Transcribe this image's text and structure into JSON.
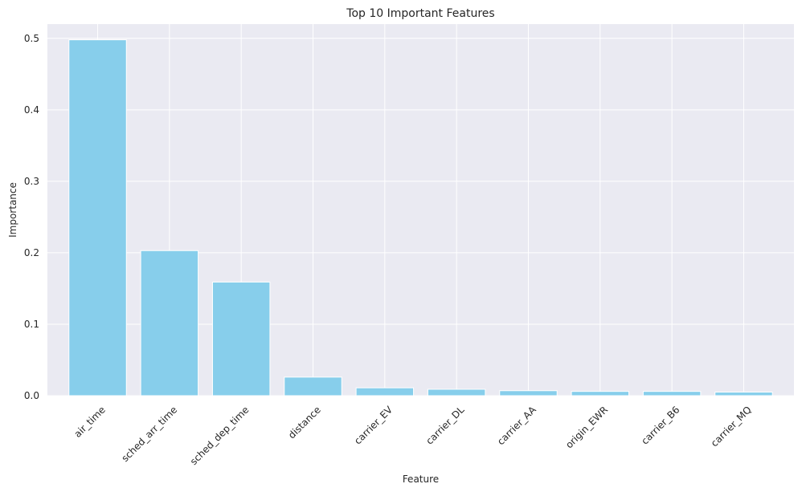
{
  "chart_data": {
    "type": "bar",
    "title": "Top 10 Important Features",
    "xlabel": "Feature",
    "ylabel": "Importance",
    "categories": [
      "air_time",
      "sched_arr_time",
      "sched_dep_time",
      "distance",
      "carrier_EV",
      "carrier_DL",
      "carrier_AA",
      "origin_EWR",
      "carrier_B6",
      "carrier_MQ"
    ],
    "values": [
      0.498,
      0.203,
      0.159,
      0.026,
      0.011,
      0.009,
      0.007,
      0.006,
      0.006,
      0.005
    ],
    "ylim": [
      0,
      0.52
    ],
    "yticks": [
      0.0,
      0.1,
      0.2,
      0.3,
      0.4,
      0.5
    ],
    "ytick_labels": [
      "0.0",
      "0.1",
      "0.2",
      "0.3",
      "0.4",
      "0.5"
    ],
    "grid": true,
    "colors": {
      "bar": "#87ceeb",
      "background": "#eaeaf2",
      "grid": "#ffffff",
      "text": "#262626"
    }
  }
}
